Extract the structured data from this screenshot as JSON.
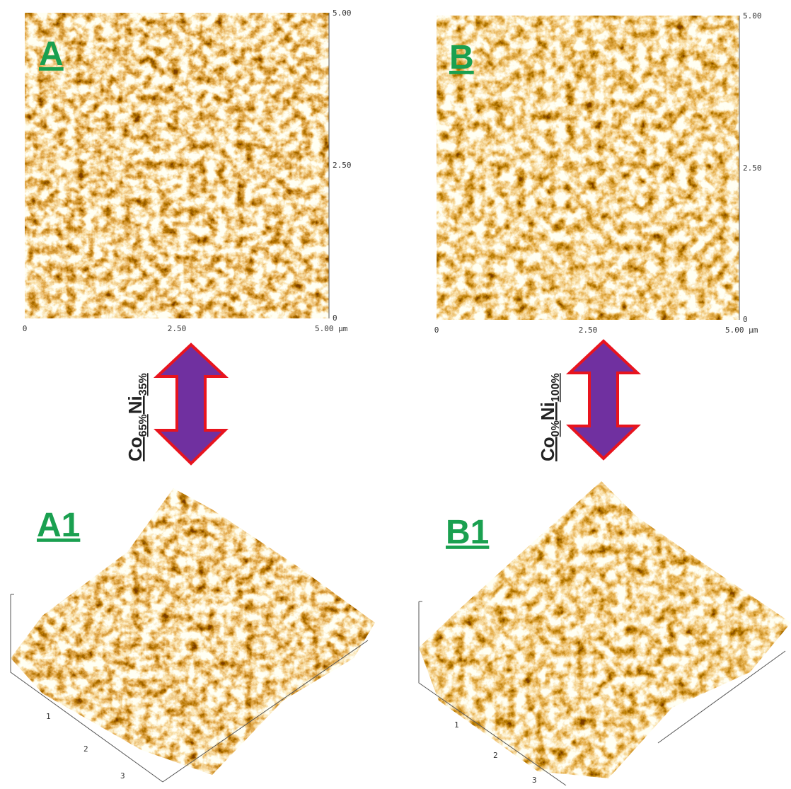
{
  "panels": [
    {
      "label": "A",
      "y_ticks": [
        "5.00",
        "2.50",
        "0"
      ],
      "x_ticks": [
        "0",
        "2.50",
        "5.00 µm"
      ]
    },
    {
      "label": "B",
      "y_ticks": [
        "5.00",
        "2.50",
        "0"
      ],
      "x_ticks": [
        "0",
        "2.50",
        "5.00 µm"
      ]
    }
  ],
  "compositions": [
    {
      "co": "Co",
      "co_sub": "65%",
      "ni": "Ni",
      "ni_sub": "35%"
    },
    {
      "co": "Co",
      "co_sub": "0%",
      "ni": "Ni",
      "ni_sub": "100%"
    }
  ],
  "surfaces": [
    {
      "label": "A1",
      "ticks": [
        "1",
        "2",
        "3"
      ]
    },
    {
      "label": "B1",
      "ticks": [
        "1",
        "2",
        "3"
      ]
    }
  ]
}
